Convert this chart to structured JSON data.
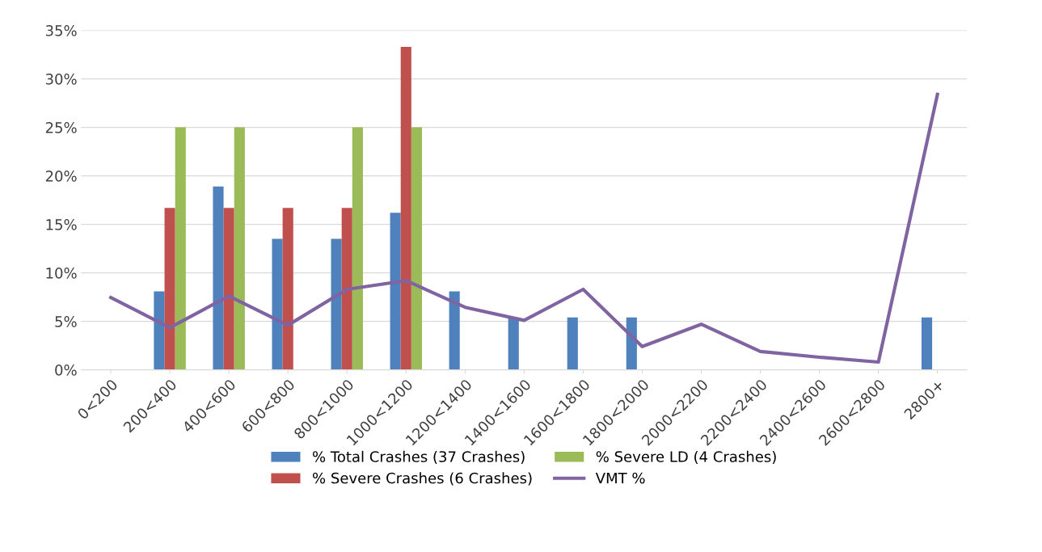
{
  "chart_data": {
    "type": "bar",
    "categories": [
      "0<200",
      "200<400",
      "400<600",
      "600<800",
      "800<1000",
      "1000<1200",
      "1200<1400",
      "1400<1600",
      "1600<1800",
      "1800<2000",
      "2000<2200",
      "2200<2400",
      "2400<2600",
      "2600<2800",
      "2800+"
    ],
    "series": [
      {
        "name": "% Total Crashes (37 Crashes)",
        "color": "#4f81bd",
        "values": [
          0,
          8.1,
          18.9,
          13.5,
          13.5,
          16.2,
          8.1,
          5.4,
          5.4,
          5.4,
          0,
          0,
          0,
          0,
          5.4
        ]
      },
      {
        "name": "% Severe Crashes (6 Crashes)",
        "color": "#c0504d",
        "values": [
          0,
          16.7,
          16.7,
          16.7,
          16.7,
          33.3,
          0,
          0,
          0,
          0,
          0,
          0,
          0,
          0,
          0
        ]
      },
      {
        "name": "% Severe LD (4 Crashes)",
        "color": "#9bbb59",
        "values": [
          0,
          25,
          25,
          0,
          25,
          25,
          0,
          0,
          0,
          0,
          0,
          0,
          0,
          0,
          0
        ]
      },
      {
        "name": "VMT %",
        "color": "#8064a2",
        "type": "line",
        "values": [
          7.45,
          4.35,
          7.6,
          4.6,
          8.3,
          9.2,
          6.45,
          5.1,
          8.3,
          2.4,
          4.7,
          1.9,
          1.3,
          0.8,
          28.4
        ]
      }
    ],
    "ylim": [
      0,
      35
    ],
    "yticks": [
      {
        "value": 0,
        "label": "0%"
      },
      {
        "value": 5,
        "label": "5%"
      },
      {
        "value": 10,
        "label": "10%"
      },
      {
        "value": 15,
        "label": "15%"
      },
      {
        "value": 20,
        "label": "20%"
      },
      {
        "value": 25,
        "label": "25%"
      },
      {
        "value": 30,
        "label": "30%"
      },
      {
        "value": 35,
        "label": "35%"
      }
    ],
    "grid": "y",
    "legend": "bottom",
    "marker": "none",
    "line_style": "solid"
  }
}
